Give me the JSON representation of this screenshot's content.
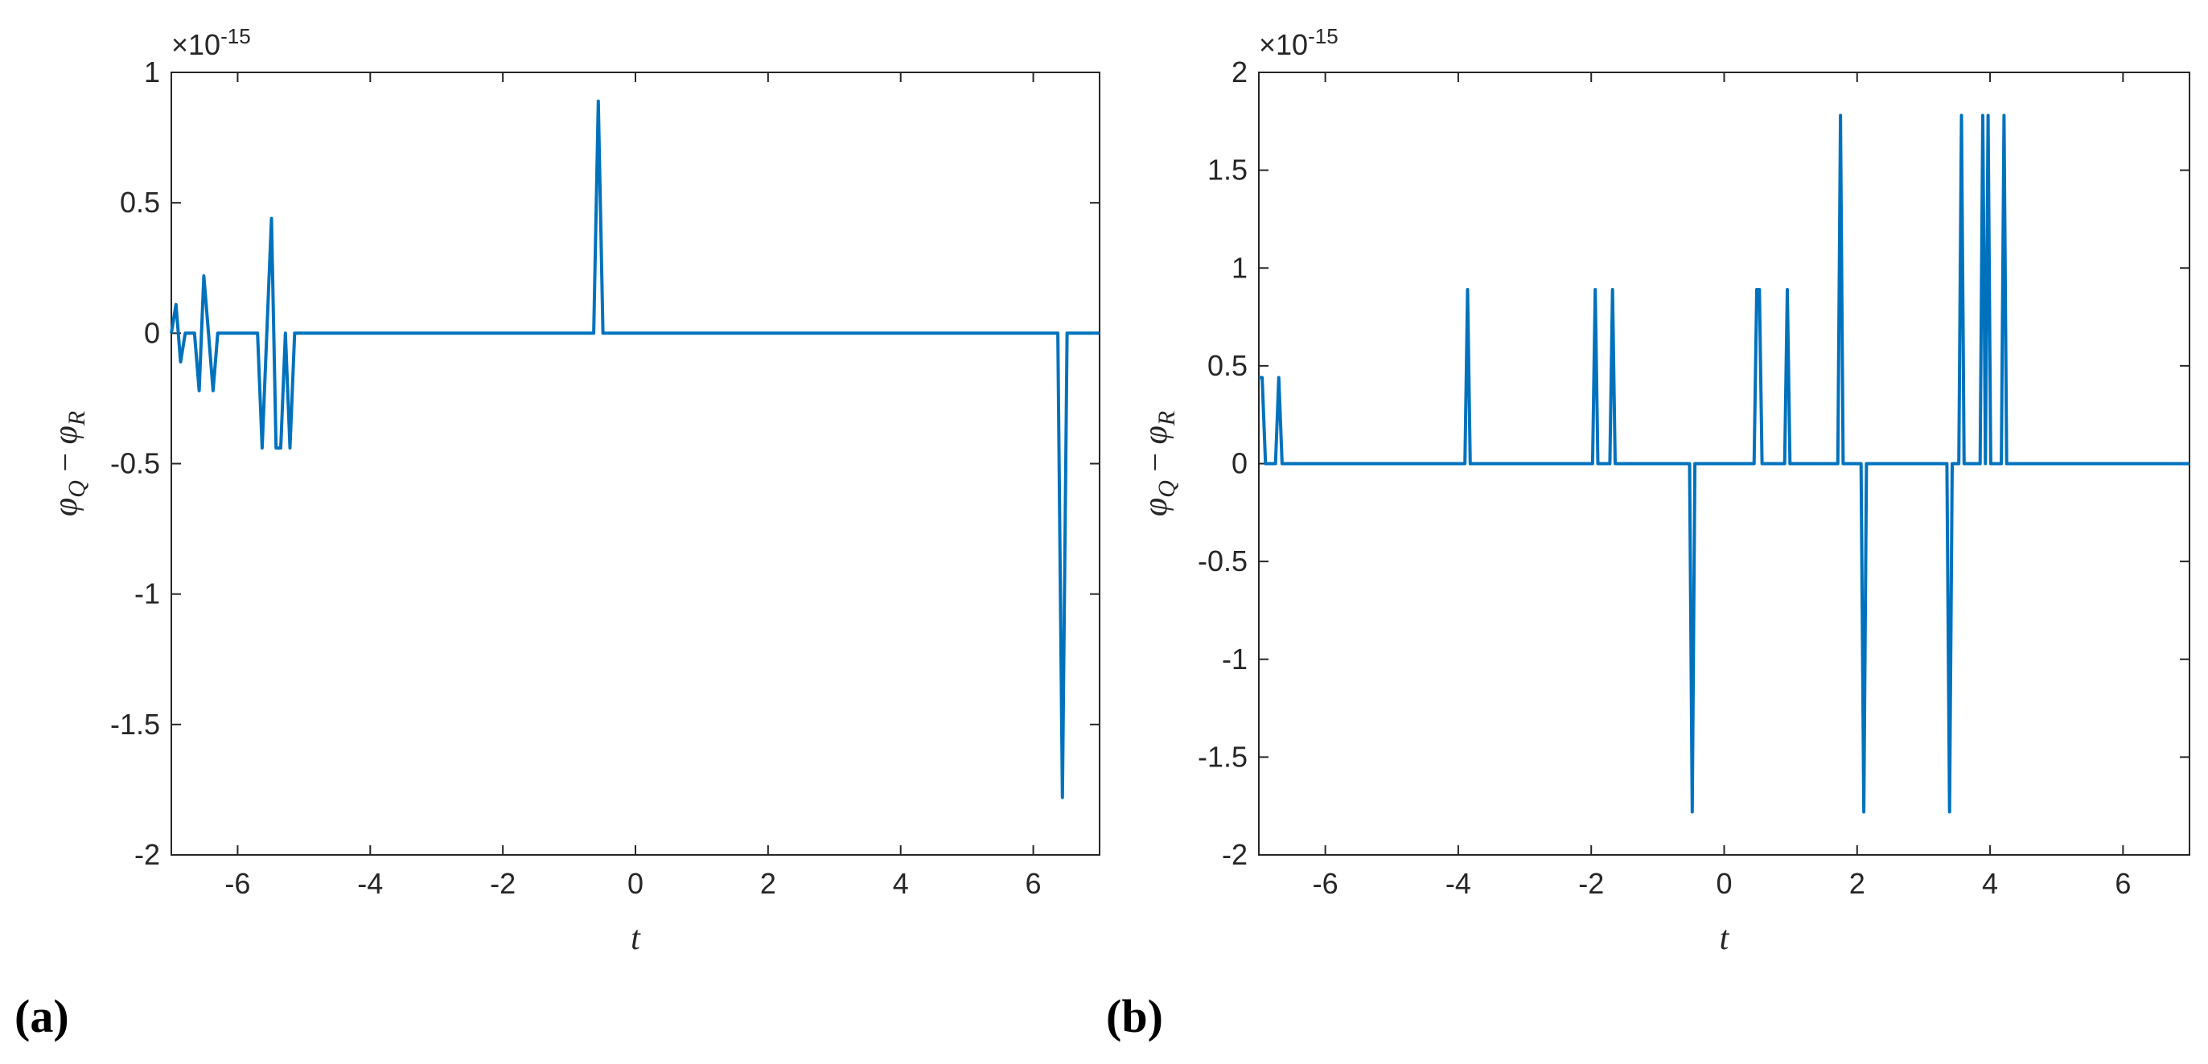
{
  "colors": {
    "series": "#0072BD",
    "axis": "#262626"
  },
  "chart_data": [
    {
      "type": "line",
      "panel_label": "(a)",
      "exponent": {
        "base": "×10",
        "power": "-15"
      },
      "xlabel": "t",
      "ylabel": {
        "main": "φ",
        "sub1": "Q",
        "op": " − ",
        "main2": "φ",
        "sub2": "R"
      },
      "xlim": [
        -7,
        7
      ],
      "ylim": [
        -2,
        1
      ],
      "xticks": [
        -6,
        -4,
        -2,
        0,
        2,
        4,
        6
      ],
      "yticks": [
        -2,
        -1.5,
        -1,
        -0.5,
        0,
        0.5,
        1
      ],
      "xtick_labels": [
        "-6",
        "-4",
        "-2",
        "0",
        "2",
        "4",
        "6"
      ],
      "ytick_labels": [
        "-2",
        "-1.5",
        "-1",
        "-0.5",
        "0",
        "0.5",
        "1"
      ],
      "grid": false,
      "series": [
        {
          "x": [
            -7,
            -6.93,
            -6.86,
            -6.79,
            -6.72,
            -6.65,
            -6.58,
            -6.51,
            -6.44,
            -6.37,
            -6.3,
            -6.23,
            -5.7,
            -5.63,
            -5.56,
            -5.49,
            -5.42,
            -5.35,
            -5.28,
            -5.21,
            -5.14,
            -5.07,
            -0.63,
            -0.56,
            -0.49,
            6.37,
            6.44,
            6.51,
            7
          ],
          "y": [
            0,
            0.11,
            -0.11,
            0,
            0,
            0,
            -0.22,
            0.22,
            0,
            -0.22,
            0,
            0,
            0,
            -0.44,
            0,
            0.44,
            -0.44,
            -0.44,
            0,
            -0.44,
            0,
            0,
            0,
            0.89,
            0,
            0,
            -1.78,
            0,
            0
          ]
        }
      ]
    },
    {
      "type": "line",
      "panel_label": "(b)",
      "exponent": {
        "base": "×10",
        "power": "-15"
      },
      "xlabel": "t",
      "ylabel": {
        "main": "φ",
        "sub1": "Q",
        "op": " − ",
        "main2": "φ",
        "sub2": "R"
      },
      "xlim": [
        -7,
        7
      ],
      "ylim": [
        -2,
        2
      ],
      "xticks": [
        -6,
        -4,
        -2,
        0,
        2,
        4,
        6
      ],
      "yticks": [
        -2,
        -1.5,
        -1,
        -0.5,
        0,
        0.5,
        1,
        1.5,
        2
      ],
      "xtick_labels": [
        "-6",
        "-4",
        "-2",
        "0",
        "2",
        "4",
        "6"
      ],
      "ytick_labels": [
        "-2",
        "-1.5",
        "-1",
        "-0.5",
        "0",
        "0.5",
        "1",
        "1.5",
        "2"
      ],
      "grid": false,
      "series": [
        {
          "x": [
            -7,
            -6.95,
            -6.9,
            -6.75,
            -6.7,
            -6.65,
            -3.9,
            -3.86,
            -3.82,
            -1.98,
            -1.94,
            -1.9,
            -1.72,
            -1.68,
            -1.64,
            -0.52,
            -0.48,
            -0.44,
            0.45,
            0.49,
            0.53,
            0.57,
            0.91,
            0.95,
            0.99,
            1.71,
            1.75,
            1.79,
            2.06,
            2.1,
            2.14,
            3.35,
            3.39,
            3.43,
            3.53,
            3.57,
            3.61,
            3.85,
            3.89,
            3.93,
            3.97,
            4.01,
            4.05,
            4.17,
            4.21,
            4.25,
            7
          ],
          "y": [
            0.44,
            0.44,
            0,
            0,
            0.44,
            0,
            0,
            0.89,
            0,
            0,
            0.89,
            0,
            0,
            0.89,
            0,
            0,
            -1.78,
            0,
            0,
            0.89,
            0.89,
            0,
            0,
            0.89,
            0,
            0,
            1.78,
            0,
            0,
            -1.78,
            0,
            0,
            -1.78,
            0,
            0,
            1.78,
            0,
            0,
            1.78,
            0,
            1.78,
            0,
            0,
            0,
            1.78,
            0,
            0
          ]
        }
      ]
    }
  ]
}
